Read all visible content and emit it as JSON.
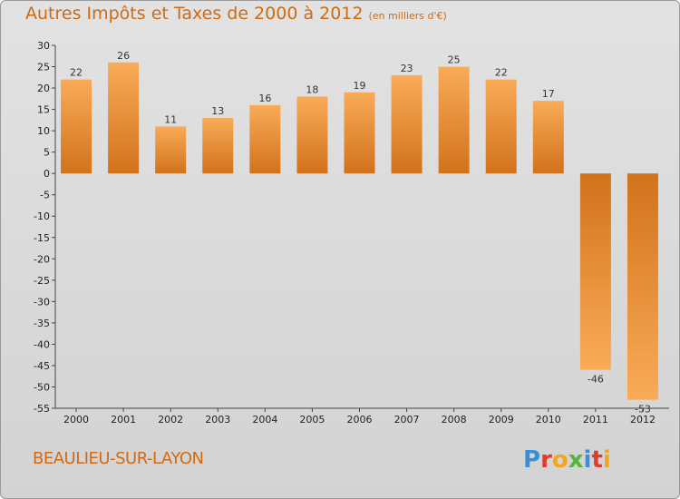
{
  "chart_data": {
    "type": "bar",
    "title": "Autres Impôts et Taxes de 2000 à 2012",
    "subtitle": "(en milliers d'€)",
    "categories": [
      "2000",
      "2001",
      "2002",
      "2003",
      "2004",
      "2005",
      "2006",
      "2007",
      "2008",
      "2009",
      "2010",
      "2011",
      "2012"
    ],
    "values": [
      22,
      26,
      11,
      13,
      16,
      18,
      19,
      23,
      25,
      22,
      17,
      -46,
      -53
    ],
    "xlabel": "",
    "ylabel": "",
    "ylim": [
      -55,
      30
    ],
    "yticks": [
      30,
      25,
      20,
      15,
      10,
      5,
      0,
      -5,
      -10,
      -15,
      -20,
      -25,
      -30,
      -35,
      -40,
      -45,
      -50,
      -55
    ],
    "grid": false,
    "bar_color": "#e8892a",
    "bar_color_light": "#f8a955"
  },
  "footer": {
    "place": "BEAULIEU-SUR-LAYON",
    "logo": "Proxiti"
  },
  "colors": {
    "accent": "#d06a12",
    "background": "#d9d9d9"
  }
}
